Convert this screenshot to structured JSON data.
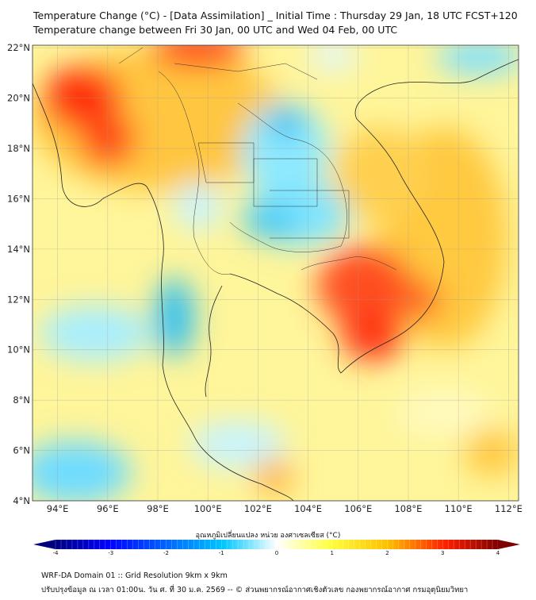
{
  "header": {
    "title": "Temperature Change (°C) - [Data Assimilation] _ Initial Time : Thursday 29 Jan, 18 UTC FCST+120",
    "subtitle": "Temperature change between Fri 30 Jan, 00 UTC and Wed 04 Feb, 00 UTC"
  },
  "map": {
    "lat_labels": [
      "22°N",
      "20°N",
      "18°N",
      "16°N",
      "14°N",
      "12°N",
      "10°N",
      "8°N",
      "6°N",
      "4°N"
    ],
    "lon_labels": [
      "94°E",
      "96°E",
      "98°E",
      "100°E",
      "102°E",
      "104°E",
      "106°E",
      "108°E",
      "110°E",
      "112°E"
    ],
    "extent": {
      "lon": [
        93.0,
        112.4
      ],
      "lat": [
        4.0,
        22.1
      ]
    }
  },
  "colorbar": {
    "title": "อุณหภูมิเปลี่ยนแปลง หน่วย องศาเซลเซียส (°C)",
    "ticks": [
      "-4",
      "-3",
      "-2",
      "-1",
      "0",
      "1",
      "2",
      "3",
      "4"
    ],
    "range": [
      -4,
      4
    ],
    "colors": [
      "#00007f",
      "#0000ff",
      "#00c8ff",
      "#ffffff",
      "#ffff40",
      "#ffc000",
      "#ff2000",
      "#7f0000"
    ]
  },
  "footer": {
    "line1": "WRF-DA Domain 01 :: Grid Resolution 9km x 9km",
    "line2": "ปรับปรุงข้อมูล ณ เวลา 01:00น. วัน ศ. ที่ 30 ม.ค. 2569 -- © ส่วนพยากรณ์อากาศเชิงตัวเลข กองพยากรณ์อากาศ กรมอุตุนิยมวิทยา"
  }
}
